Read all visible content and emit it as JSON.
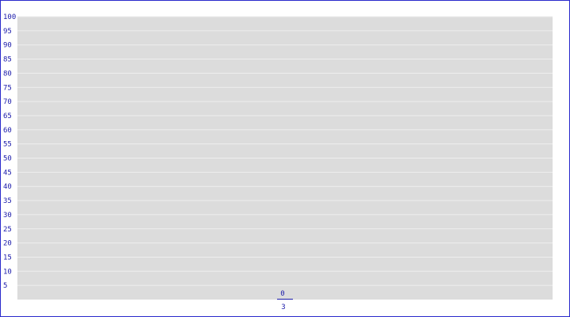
{
  "chart_data": {
    "type": "bar",
    "categories": [
      "3"
    ],
    "values": [
      0
    ],
    "data_labels": [
      "0"
    ],
    "title": "",
    "xlabel": "",
    "ylabel": "",
    "ylim": [
      0,
      100
    ],
    "yticks": [
      5,
      10,
      15,
      20,
      25,
      30,
      35,
      40,
      45,
      50,
      55,
      60,
      65,
      70,
      75,
      80,
      85,
      90,
      95,
      100
    ],
    "grid": true,
    "colors": {
      "plot_background": "#dcdcdc",
      "gridline": "#eeeeee",
      "text": "#1a1aaa",
      "bar": "#1a1aaa",
      "border": "#2a2acc"
    }
  }
}
